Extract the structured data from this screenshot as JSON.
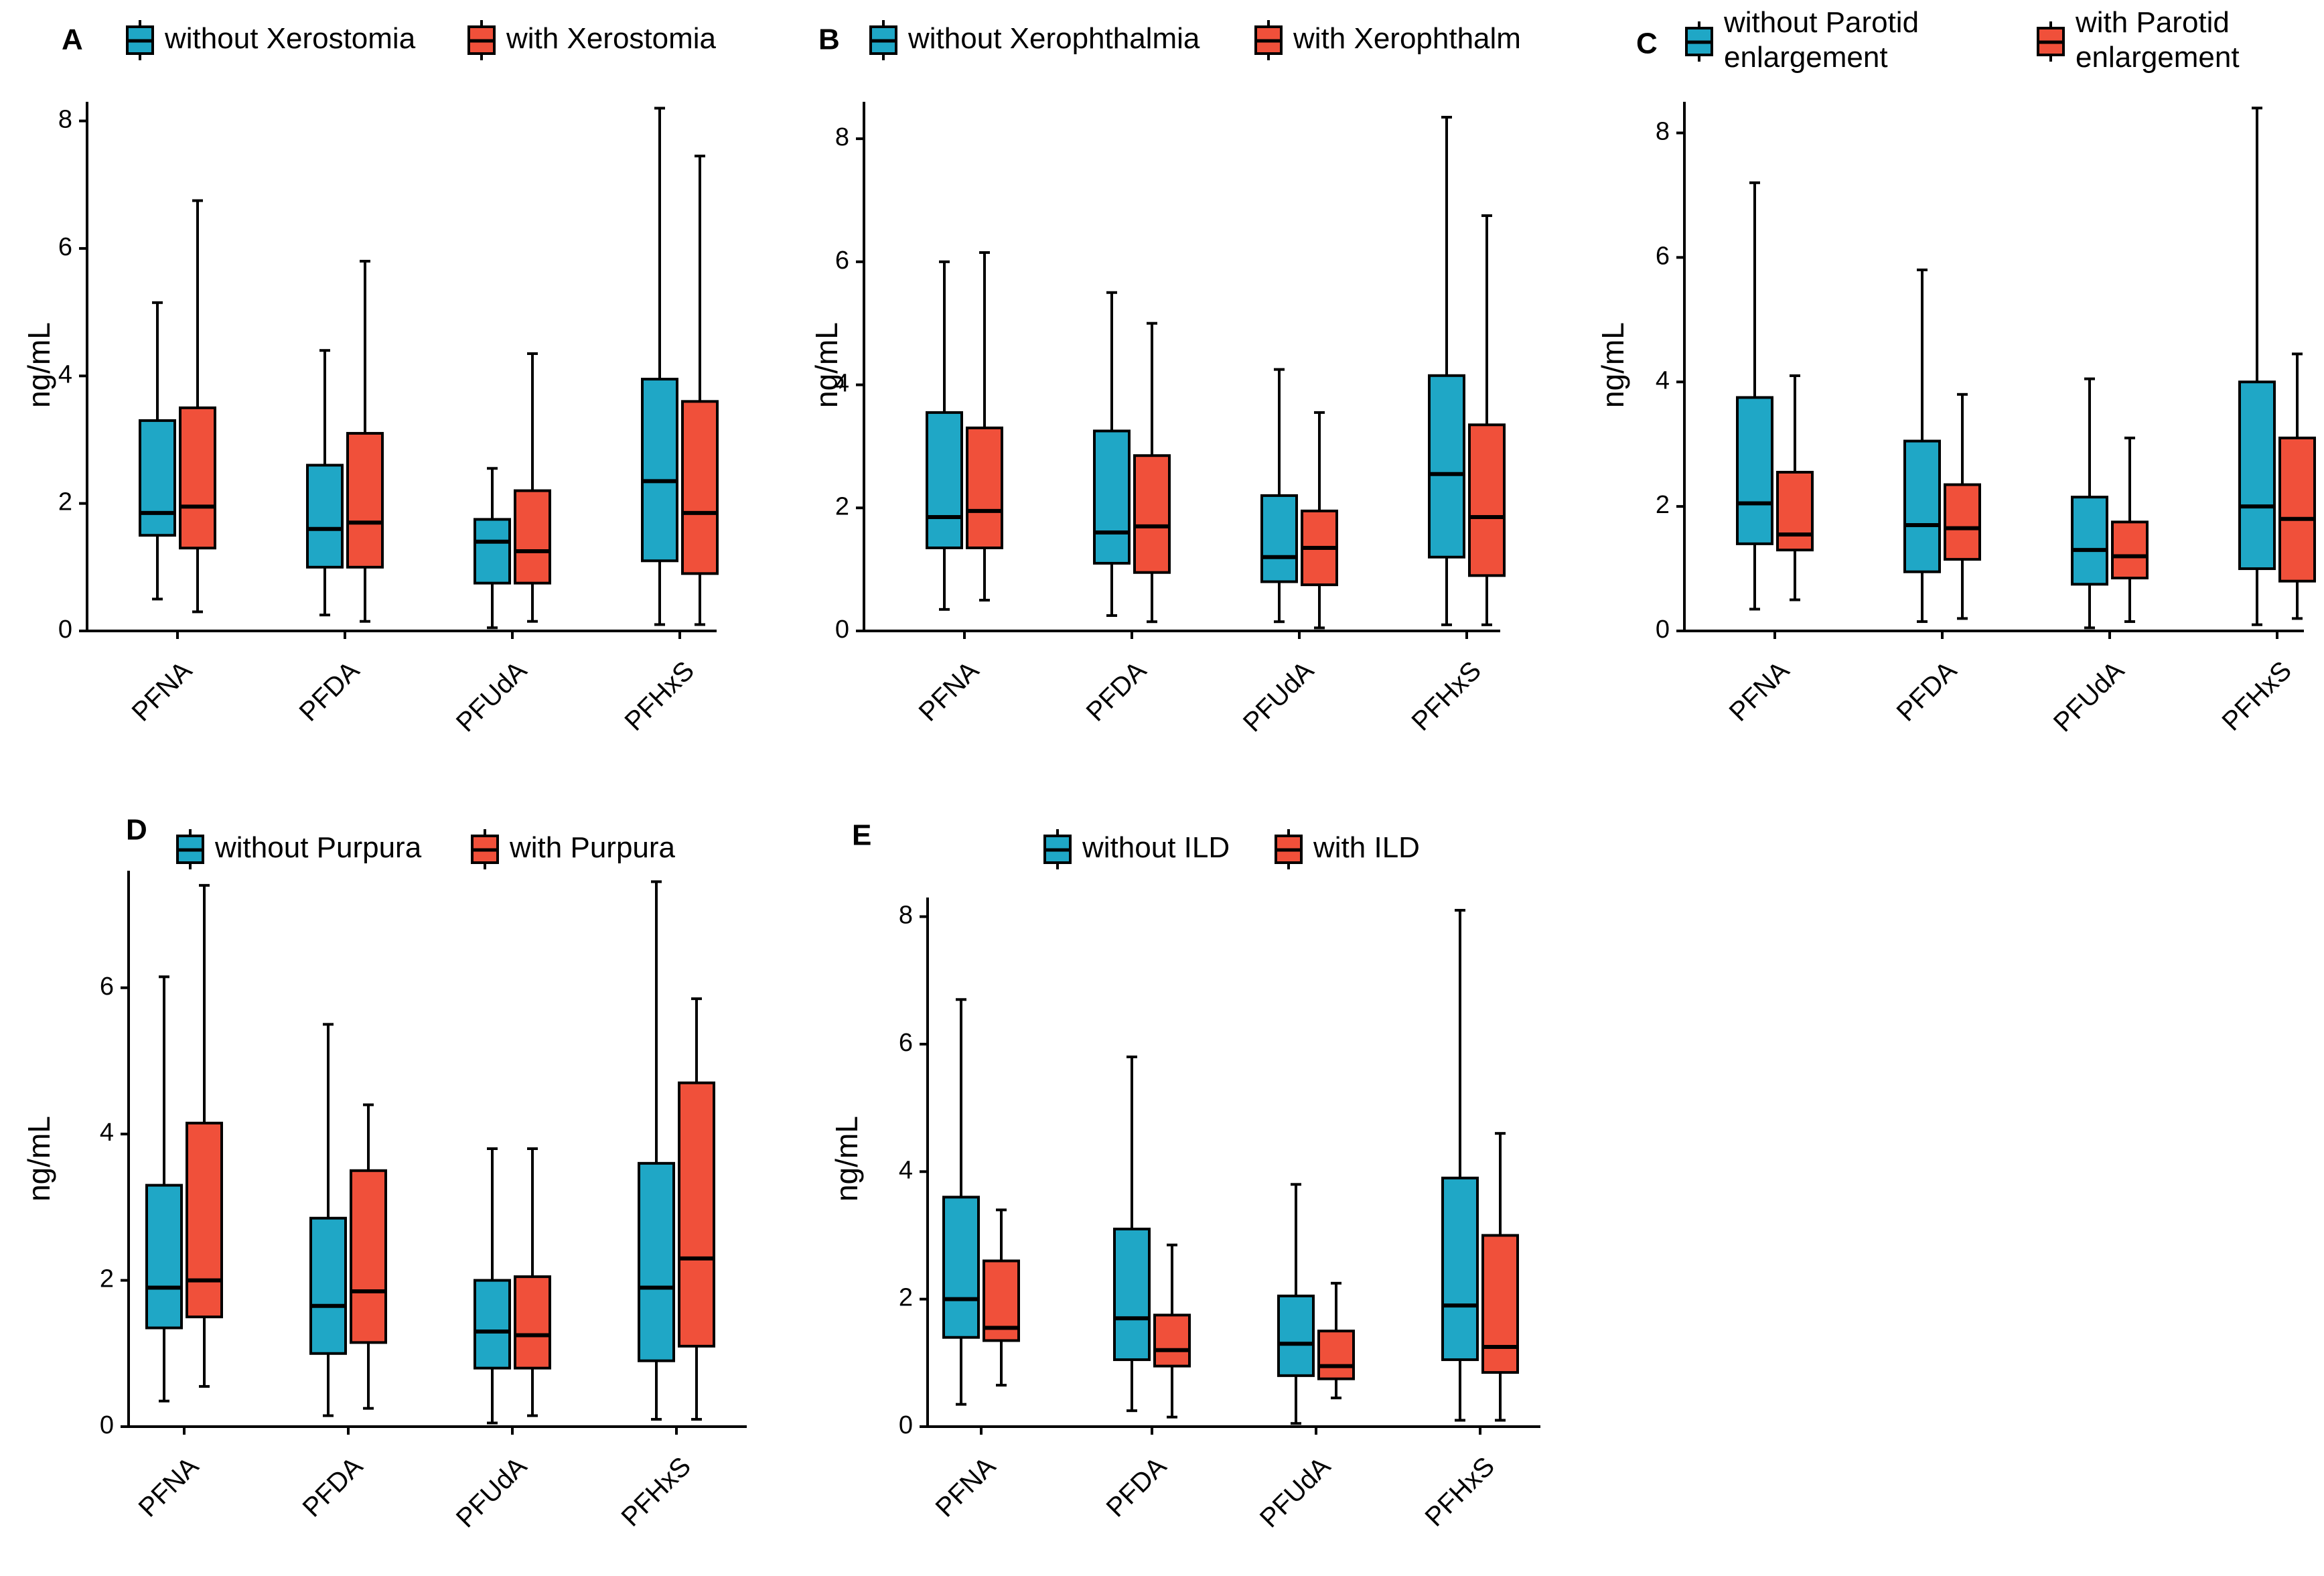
{
  "figure": {
    "colors": {
      "without": "#1FA7C6",
      "with": "#F0503A"
    },
    "ylabel": "ng/mL"
  },
  "chart_data": [
    {
      "type": "box",
      "panel": "A",
      "ylabel": "ng/mL",
      "ylim": [
        0,
        8.3
      ],
      "yticks": [
        "0",
        "2",
        "4",
        "6",
        "8"
      ],
      "categories": [
        "PFNA",
        "PFDA",
        "PFUdA",
        "PFHxS"
      ],
      "legend": [
        {
          "name": "without Xerostomia",
          "color": "#1FA7C6"
        },
        {
          "name": "with Xerostomia",
          "color": "#F0503A"
        }
      ],
      "series": [
        {
          "name": "without Xerostomia",
          "boxes": [
            {
              "min": 0.5,
              "q1": 1.5,
              "median": 1.85,
              "q3": 3.3,
              "max": 5.15
            },
            {
              "min": 0.25,
              "q1": 1.0,
              "median": 1.6,
              "q3": 2.6,
              "max": 4.4
            },
            {
              "min": 0.05,
              "q1": 0.75,
              "median": 1.4,
              "q3": 1.75,
              "max": 2.55
            },
            {
              "min": 0.1,
              "q1": 1.1,
              "median": 2.35,
              "q3": 3.95,
              "max": 8.2
            }
          ]
        },
        {
          "name": "with Xerostomia",
          "boxes": [
            {
              "min": 0.3,
              "q1": 1.3,
              "median": 1.95,
              "q3": 3.5,
              "max": 6.75
            },
            {
              "min": 0.15,
              "q1": 1.0,
              "median": 1.7,
              "q3": 3.1,
              "max": 5.8
            },
            {
              "min": 0.15,
              "q1": 0.75,
              "median": 1.25,
              "q3": 2.2,
              "max": 4.35
            },
            {
              "min": 0.1,
              "q1": 0.9,
              "median": 1.85,
              "q3": 3.6,
              "max": 7.45
            }
          ]
        }
      ]
    },
    {
      "type": "box",
      "panel": "B",
      "ylabel": "ng/mL",
      "ylim": [
        0,
        8.6
      ],
      "yticks": [
        "0",
        "2",
        "4",
        "6",
        "8"
      ],
      "categories": [
        "PFNA",
        "PFDA",
        "PFUdA",
        "PFHxS"
      ],
      "legend": [
        {
          "name": "without Xerophthalmia",
          "color": "#1FA7C6"
        },
        {
          "name": "with Xerophthalm",
          "color": "#F0503A"
        }
      ],
      "series": [
        {
          "name": "without Xerophthalmia",
          "boxes": [
            {
              "min": 0.35,
              "q1": 1.35,
              "median": 1.85,
              "q3": 3.55,
              "max": 6.0
            },
            {
              "min": 0.25,
              "q1": 1.1,
              "median": 1.6,
              "q3": 3.25,
              "max": 5.5
            },
            {
              "min": 0.15,
              "q1": 0.8,
              "median": 1.2,
              "q3": 2.2,
              "max": 4.25
            },
            {
              "min": 0.1,
              "q1": 1.2,
              "median": 2.55,
              "q3": 4.15,
              "max": 8.35
            }
          ]
        },
        {
          "name": "with Xerophthalm",
          "boxes": [
            {
              "min": 0.5,
              "q1": 1.35,
              "median": 1.95,
              "q3": 3.3,
              "max": 6.15
            },
            {
              "min": 0.15,
              "q1": 0.95,
              "median": 1.7,
              "q3": 2.85,
              "max": 5.0
            },
            {
              "min": 0.05,
              "q1": 0.75,
              "median": 1.35,
              "q3": 1.95,
              "max": 3.55
            },
            {
              "min": 0.1,
              "q1": 0.9,
              "median": 1.85,
              "q3": 3.35,
              "max": 6.75
            }
          ]
        }
      ]
    },
    {
      "type": "box",
      "panel": "C",
      "ylabel": "ng/mL",
      "ylim": [
        0,
        8.5
      ],
      "yticks": [
        "0",
        "2",
        "4",
        "6",
        "8"
      ],
      "categories": [
        "PFNA",
        "PFDA",
        "PFUdA",
        "PFHxS"
      ],
      "legend": [
        {
          "name": "without Parotid enlargement",
          "lines": [
            "without Parotid",
            "enlargement"
          ],
          "color": "#1FA7C6"
        },
        {
          "name": "with Parotid enlargement",
          "lines": [
            "with Parotid",
            "enlargement"
          ],
          "color": "#F0503A"
        }
      ],
      "series": [
        {
          "name": "without Parotid enlargement",
          "boxes": [
            {
              "min": 0.35,
              "q1": 1.4,
              "median": 2.05,
              "q3": 3.75,
              "max": 7.2
            },
            {
              "min": 0.15,
              "q1": 0.95,
              "median": 1.7,
              "q3": 3.05,
              "max": 5.8
            },
            {
              "min": 0.05,
              "q1": 0.75,
              "median": 1.3,
              "q3": 2.15,
              "max": 4.05
            },
            {
              "min": 0.1,
              "q1": 1.0,
              "median": 2.0,
              "q3": 4.0,
              "max": 8.4
            }
          ]
        },
        {
          "name": "with Parotid enlargement",
          "boxes": [
            {
              "min": 0.5,
              "q1": 1.3,
              "median": 1.55,
              "q3": 2.55,
              "max": 4.1
            },
            {
              "min": 0.2,
              "q1": 1.15,
              "median": 1.65,
              "q3": 2.35,
              "max": 3.8
            },
            {
              "min": 0.15,
              "q1": 0.85,
              "median": 1.2,
              "q3": 1.75,
              "max": 3.1
            },
            {
              "min": 0.2,
              "q1": 0.8,
              "median": 1.8,
              "q3": 3.1,
              "max": 4.45
            }
          ]
        }
      ]
    },
    {
      "type": "box",
      "panel": "D",
      "ylabel": "ng/mL",
      "ylim": [
        0,
        7.6
      ],
      "yticks": [
        "0",
        "2",
        "4",
        "6"
      ],
      "categories": [
        "PFNA",
        "PFDA",
        "PFUdA",
        "PFHxS"
      ],
      "legend": [
        {
          "name": "without Purpura",
          "color": "#1FA7C6"
        },
        {
          "name": "with Purpura",
          "color": "#F0503A"
        }
      ],
      "series": [
        {
          "name": "without Purpura",
          "boxes": [
            {
              "min": 0.35,
              "q1": 1.35,
              "median": 1.9,
              "q3": 3.3,
              "max": 6.15
            },
            {
              "min": 0.15,
              "q1": 1.0,
              "median": 1.65,
              "q3": 2.85,
              "max": 5.5
            },
            {
              "min": 0.05,
              "q1": 0.8,
              "median": 1.3,
              "q3": 2.0,
              "max": 3.8
            },
            {
              "min": 0.1,
              "q1": 0.9,
              "median": 1.9,
              "q3": 3.6,
              "max": 7.45
            }
          ]
        },
        {
          "name": "with Purpura",
          "boxes": [
            {
              "min": 0.55,
              "q1": 1.5,
              "median": 2.0,
              "q3": 4.15,
              "max": 7.4
            },
            {
              "min": 0.25,
              "q1": 1.15,
              "median": 1.85,
              "q3": 3.5,
              "max": 4.4
            },
            {
              "min": 0.15,
              "q1": 0.8,
              "median": 1.25,
              "q3": 2.05,
              "max": 3.8
            },
            {
              "min": 0.1,
              "q1": 1.1,
              "median": 2.3,
              "q3": 4.7,
              "max": 5.85
            }
          ]
        }
      ]
    },
    {
      "type": "box",
      "panel": "E",
      "ylabel": "ng/mL",
      "ylim": [
        0,
        8.3
      ],
      "yticks": [
        "0",
        "2",
        "4",
        "6",
        "8"
      ],
      "categories": [
        "PFNA",
        "PFDA",
        "PFUdA",
        "PFHxS"
      ],
      "legend": [
        {
          "name": "without ILD",
          "color": "#1FA7C6"
        },
        {
          "name": "with ILD",
          "color": "#F0503A"
        }
      ],
      "series": [
        {
          "name": "without ILD",
          "boxes": [
            {
              "min": 0.35,
              "q1": 1.4,
              "median": 2.0,
              "q3": 3.6,
              "max": 6.7
            },
            {
              "min": 0.25,
              "q1": 1.05,
              "median": 1.7,
              "q3": 3.1,
              "max": 5.8
            },
            {
              "min": 0.05,
              "q1": 0.8,
              "median": 1.3,
              "q3": 2.05,
              "max": 3.8
            },
            {
              "min": 0.1,
              "q1": 1.05,
              "median": 1.9,
              "q3": 3.9,
              "max": 8.1
            }
          ]
        },
        {
          "name": "with ILD",
          "boxes": [
            {
              "min": 0.65,
              "q1": 1.35,
              "median": 1.55,
              "q3": 2.6,
              "max": 3.4
            },
            {
              "min": 0.15,
              "q1": 0.95,
              "median": 1.2,
              "q3": 1.75,
              "max": 2.85
            },
            {
              "min": 0.45,
              "q1": 0.75,
              "median": 0.95,
              "q3": 1.5,
              "max": 2.25
            },
            {
              "min": 0.1,
              "q1": 0.85,
              "median": 1.25,
              "q3": 3.0,
              "max": 4.6
            }
          ]
        }
      ]
    }
  ]
}
